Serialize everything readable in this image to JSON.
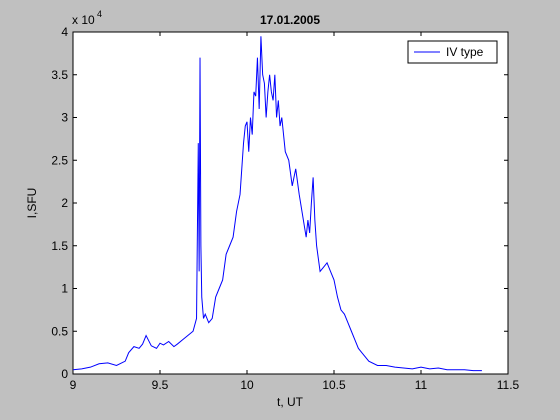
{
  "chart_data": {
    "type": "line",
    "title": "17.01.2005",
    "xlabel": "t, UT",
    "ylabel": "I,SFU",
    "xlim": [
      9,
      11.5
    ],
    "ylim": [
      0,
      40000
    ],
    "x_ticks": [
      9,
      9.5,
      10,
      10.5,
      11,
      11.5
    ],
    "x_tick_labels": [
      "9",
      "9.5",
      "10",
      "10.5",
      "11",
      "11.5"
    ],
    "y_ticks": [
      0,
      5000,
      10000,
      15000,
      20000,
      25000,
      30000,
      35000,
      40000
    ],
    "y_tick_labels": [
      "0",
      "0.5",
      "1",
      "1.5",
      "2",
      "2.5",
      "3",
      "3.5",
      "4"
    ],
    "y_exponent_base": "x 10",
    "y_exponent_power": "4",
    "grid": false,
    "legend_position": "top-right",
    "series": [
      {
        "name": "IV type",
        "color": "#0000ff",
        "x": [
          9.0,
          9.05,
          9.1,
          9.15,
          9.2,
          9.25,
          9.3,
          9.32,
          9.35,
          9.38,
          9.4,
          9.42,
          9.45,
          9.48,
          9.5,
          9.52,
          9.55,
          9.58,
          9.6,
          9.63,
          9.66,
          9.69,
          9.71,
          9.72,
          9.725,
          9.73,
          9.735,
          9.74,
          9.75,
          9.76,
          9.78,
          9.8,
          9.82,
          9.84,
          9.86,
          9.88,
          9.9,
          9.92,
          9.94,
          9.96,
          9.97,
          9.98,
          9.99,
          10.0,
          10.01,
          10.02,
          10.03,
          10.04,
          10.05,
          10.06,
          10.07,
          10.08,
          10.09,
          10.1,
          10.11,
          10.12,
          10.13,
          10.14,
          10.15,
          10.16,
          10.17,
          10.18,
          10.19,
          10.2,
          10.22,
          10.24,
          10.26,
          10.28,
          10.3,
          10.32,
          10.34,
          10.35,
          10.36,
          10.37,
          10.38,
          10.39,
          10.4,
          10.42,
          10.44,
          10.46,
          10.48,
          10.5,
          10.52,
          10.54,
          10.56,
          10.58,
          10.6,
          10.62,
          10.64,
          10.66,
          10.68,
          10.7,
          10.75,
          10.8,
          10.85,
          10.9,
          10.95,
          11.0,
          11.05,
          11.1,
          11.15,
          11.2,
          11.25,
          11.3,
          11.35
        ],
        "y": [
          500,
          600,
          800,
          1200,
          1300,
          1000,
          1500,
          2500,
          3200,
          3000,
          3500,
          4500,
          3300,
          3000,
          3600,
          3400,
          3800,
          3200,
          3500,
          4000,
          4500,
          5000,
          6500,
          27000,
          12000,
          37000,
          15000,
          9000,
          6500,
          7000,
          6000,
          6500,
          9000,
          10000,
          11000,
          14000,
          15000,
          16000,
          19000,
          21000,
          24000,
          27000,
          29000,
          29500,
          26000,
          30000,
          28000,
          33000,
          32500,
          37000,
          31000,
          39500,
          35000,
          34000,
          30000,
          33000,
          35000,
          33000,
          32000,
          35000,
          30000,
          32000,
          29000,
          30000,
          26000,
          25000,
          22000,
          24000,
          21000,
          18500,
          16000,
          18000,
          16500,
          20000,
          23000,
          18000,
          15000,
          12000,
          12500,
          13000,
          12000,
          11000,
          9000,
          7500,
          7000,
          6000,
          5000,
          4000,
          3000,
          2500,
          2000,
          1500,
          1000,
          1000,
          800,
          700,
          600,
          800,
          600,
          700,
          500,
          500,
          500,
          400,
          400
        ]
      }
    ]
  }
}
